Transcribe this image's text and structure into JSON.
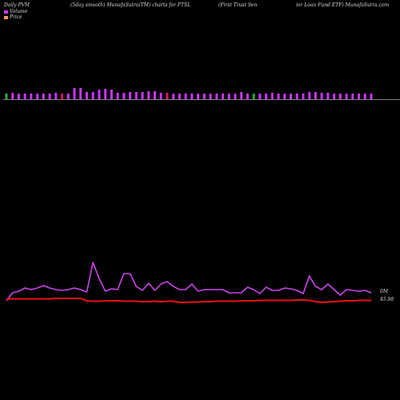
{
  "header": {
    "label_left": "Daily PVM",
    "label_mid": "(5day smooth) MunafaSutra(TM) charts for FTSL",
    "label_right_a": "(First Trust Sen",
    "label_right_b": "ior Loan  Fund ETF) MunafaSutra.com"
  },
  "legend": {
    "volume_label": "Volume",
    "price_label": "Price",
    "volume_color": "#cc33ff",
    "price_color": "#ff9966"
  },
  "colors": {
    "background": "#000000",
    "bar_up": "#cc33ff",
    "bar_down": "#dd1166",
    "bar_green": "#22aa44",
    "volume_line": "#cc44ee",
    "price_line": "#ee1111",
    "baseline": "#aaaaaa"
  },
  "chart_data": {
    "type": "line",
    "grid": false,
    "legend_position": "top-left",
    "volume_axis_label": "0M",
    "price_axis_label": "45.98",
    "bars": {
      "values": [
        7,
        8,
        7,
        7,
        7,
        7,
        7,
        7,
        8,
        7,
        7,
        14,
        14,
        9,
        9,
        12,
        13,
        12,
        8,
        8,
        9,
        9,
        9,
        10,
        10,
        8,
        8,
        7,
        7,
        7,
        7,
        7,
        7,
        7,
        7,
        7,
        7,
        7,
        9,
        7,
        7,
        7,
        7,
        8,
        7,
        7,
        7,
        7,
        7,
        9,
        9,
        8,
        8,
        7,
        7,
        7,
        7,
        7,
        7,
        7
      ],
      "colors": [
        "g",
        "u",
        "u",
        "u",
        "u",
        "u",
        "u",
        "u",
        "u",
        "d",
        "u",
        "u",
        "u",
        "u",
        "u",
        "u",
        "u",
        "u",
        "u",
        "u",
        "u",
        "u",
        "u",
        "u",
        "u",
        "u",
        "d",
        "u",
        "u",
        "u",
        "u",
        "u",
        "u",
        "u",
        "u",
        "u",
        "u",
        "u",
        "u",
        "u",
        "g",
        "u",
        "u",
        "u",
        "u",
        "u",
        "u",
        "u",
        "u",
        "u",
        "u",
        "u",
        "u",
        "u",
        "u",
        "u",
        "u",
        "u",
        "u",
        "u"
      ]
    },
    "volume_line": [
      376,
      366,
      364,
      360,
      362,
      360,
      357,
      360,
      362,
      363,
      362,
      360,
      362,
      365,
      328,
      348,
      364,
      361,
      362,
      342,
      342,
      358,
      363,
      354,
      363,
      355,
      352,
      358,
      362,
      362,
      355,
      364,
      362,
      362,
      362,
      362,
      366,
      366,
      366,
      359,
      362,
      367,
      359,
      363,
      363,
      360,
      361,
      363,
      367,
      345,
      358,
      362,
      355,
      362,
      369,
      362,
      363,
      364,
      363,
      366
    ],
    "price_line": [
      374,
      373.5,
      373.5,
      373.5,
      373.5,
      373.5,
      373.5,
      373.5,
      373,
      373,
      373,
      373,
      373,
      376,
      376.5,
      376.5,
      376,
      376,
      376,
      376.5,
      376.5,
      376.5,
      377,
      377,
      376.5,
      377,
      376.5,
      376.5,
      378,
      378,
      377.5,
      377.5,
      377,
      377,
      376.5,
      376.5,
      376.5,
      376.5,
      376,
      376,
      376,
      375.5,
      375.5,
      375.5,
      375.5,
      375.5,
      375.5,
      375,
      375,
      375.5,
      377,
      378,
      377.5,
      377,
      376.5,
      376,
      376,
      375.5,
      375.5,
      375.5
    ]
  }
}
